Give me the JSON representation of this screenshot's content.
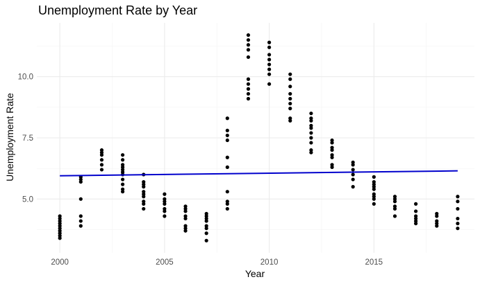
{
  "chart_data": {
    "type": "scatter",
    "title": "Unemployment Rate by Year",
    "xlabel": "Year",
    "ylabel": "Unemployment Rate",
    "xlim": [
      1998.9,
      2019.8
    ],
    "ylim": [
      2.8,
      12.2
    ],
    "x_ticks": [
      2000,
      2005,
      2010,
      2015
    ],
    "x_tick_labels": [
      "2000",
      "2005",
      "2010",
      "2015"
    ],
    "y_ticks": [
      5.0,
      7.5,
      10.0
    ],
    "y_tick_labels": [
      "5.0",
      "7.5",
      "10.0"
    ],
    "grid": true,
    "legend": "none",
    "points": [
      {
        "year": 2000,
        "values": [
          4.3,
          4.2,
          4.1,
          4.0,
          3.9,
          3.8,
          3.7,
          3.6,
          3.5,
          3.4
        ]
      },
      {
        "year": 2001,
        "values": [
          5.9,
          5.8,
          5.7,
          5.0,
          4.3,
          4.1,
          3.9
        ]
      },
      {
        "year": 2002,
        "values": [
          7.0,
          6.9,
          6.8,
          6.6,
          6.4,
          6.2
        ]
      },
      {
        "year": 2003,
        "values": [
          6.8,
          6.6,
          6.4,
          6.3,
          6.2,
          6.1,
          6.0,
          5.8,
          5.6,
          5.4,
          5.3
        ]
      },
      {
        "year": 2004,
        "values": [
          6.0,
          5.7,
          5.6,
          5.5,
          5.3,
          5.2,
          5.1,
          4.9,
          4.8,
          4.6
        ]
      },
      {
        "year": 2005,
        "values": [
          5.2,
          5.0,
          4.9,
          4.8,
          4.6,
          4.5,
          4.3
        ]
      },
      {
        "year": 2006,
        "values": [
          4.7,
          4.6,
          4.5,
          4.3,
          4.2,
          3.9,
          3.8,
          3.7
        ]
      },
      {
        "year": 2007,
        "values": [
          4.4,
          4.3,
          4.2,
          4.1,
          3.9,
          3.8,
          3.6,
          3.3
        ]
      },
      {
        "year": 2008,
        "values": [
          8.3,
          7.8,
          7.6,
          7.4,
          6.7,
          6.3,
          5.3,
          4.9,
          4.8,
          4.6
        ]
      },
      {
        "year": 2009,
        "values": [
          11.7,
          11.5,
          11.3,
          11.1,
          10.8,
          9.9,
          9.7,
          9.5,
          9.3,
          9.1
        ]
      },
      {
        "year": 2010,
        "values": [
          11.4,
          11.2,
          10.9,
          10.7,
          10.5,
          10.3,
          10.1,
          9.7
        ]
      },
      {
        "year": 2011,
        "values": [
          10.1,
          9.9,
          9.6,
          9.3,
          9.1,
          8.9,
          8.7,
          8.3,
          8.2
        ]
      },
      {
        "year": 2012,
        "values": [
          8.5,
          8.3,
          8.2,
          8.0,
          7.9,
          7.7,
          7.5,
          7.3,
          7.0,
          6.9
        ]
      },
      {
        "year": 2013,
        "values": [
          7.4,
          7.3,
          7.1,
          7.0,
          6.8,
          6.7,
          6.4,
          6.3
        ]
      },
      {
        "year": 2014,
        "values": [
          6.5,
          6.4,
          6.2,
          6.0,
          5.8,
          5.5
        ]
      },
      {
        "year": 2015,
        "values": [
          5.9,
          5.7,
          5.6,
          5.5,
          5.4,
          5.2,
          5.1,
          5.0,
          4.8
        ]
      },
      {
        "year": 2016,
        "values": [
          5.1,
          5.0,
          4.9,
          4.7,
          4.6,
          4.3
        ]
      },
      {
        "year": 2017,
        "values": [
          4.8,
          4.5,
          4.3,
          4.2,
          4.1,
          4.0
        ]
      },
      {
        "year": 2018,
        "values": [
          4.4,
          4.3,
          4.1,
          4.0,
          3.9
        ]
      },
      {
        "year": 2019,
        "values": [
          5.1,
          4.9,
          4.6,
          4.2,
          4.0,
          3.8
        ]
      }
    ],
    "trend_line": {
      "x": [
        2000,
        2019
      ],
      "y": [
        5.95,
        6.15
      ]
    },
    "colors": {
      "points": "#000000",
      "trend_line": "#0000cc",
      "grid_major": "#ebebeb",
      "grid_minor": "#f3f3f3",
      "tick_text": "#4d4d4d"
    }
  }
}
